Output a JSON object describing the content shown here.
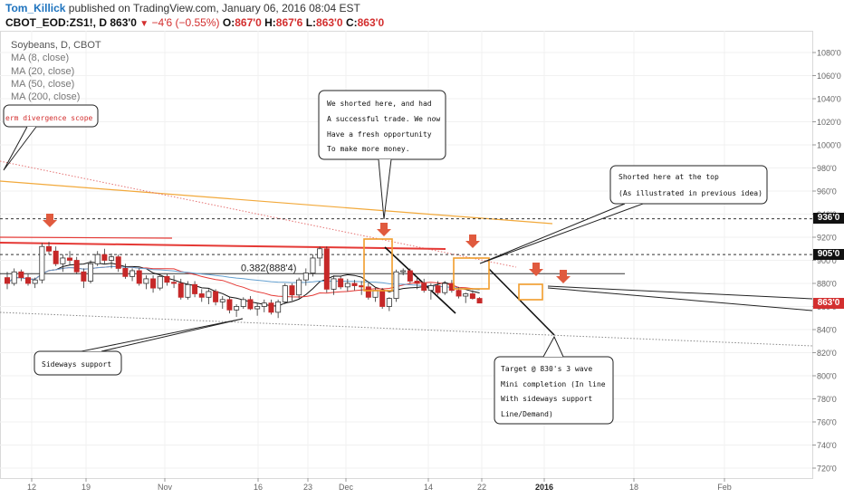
{
  "header": {
    "author": "Tom_Killick",
    "published": " published on TradingView.com, January 06, 2016 08:04 EST",
    "symbol": "CBOT_EOD:ZS1!, D",
    "last": "863'0",
    "change": "−4'6 (−0.55%)",
    "o_label": "O:",
    "o": "867'0",
    "h_label": "H:",
    "h": "867'6",
    "l_label": "L:",
    "l": "863'0",
    "c_label": "C:",
    "c": "863'0",
    "down_icon": "triangle-down-icon"
  },
  "legend": {
    "title": "Soybeans, D, CBOT",
    "items": [
      "MA (8, close)",
      "MA (20, close)",
      "MA (50, close)",
      "MA (200, close)"
    ]
  },
  "annotations": {
    "divergence": "erm divergence scope",
    "shorted1": [
      "We shorted here, and had",
      "A successful trade. We now",
      "Have a fresh opportunity",
      "To make more money."
    ],
    "shorted2": [
      "Shorted here at the top",
      "(As illustrated in previous idea)"
    ],
    "sideways": "Sideways support",
    "target": [
      "Target @ 830's 3 wave",
      "Mini completion (In line",
      "With sideways support",
      "Line/Demand)"
    ],
    "fib": "0.382(888'4)"
  },
  "price_tags": {
    "level_936": "936'0",
    "level_905": "905'0",
    "last": "863'0"
  },
  "colors": {
    "up": "#ffffff",
    "down": "#c62828",
    "ma8": "#111111",
    "ma20": "#e53935",
    "ma50": "#64a0d0",
    "ma200": "#f2a93b",
    "accent_box": "#f29d2b",
    "arrow": "#e05a3e"
  },
  "chart_data": {
    "type": "candlestick",
    "y_axis": {
      "min": 710,
      "max": 1090,
      "ticks": [
        "1080'0",
        "1060'0",
        "1040'0",
        "1020'0",
        "1000'0",
        "980'0",
        "960'0",
        "940'0",
        "920'0",
        "900'0",
        "880'0",
        "860'0",
        "840'0",
        "820'0",
        "800'0",
        "780'0",
        "760'0",
        "740'0",
        "720'0"
      ]
    },
    "x_axis": {
      "ticks": [
        "12",
        "19",
        "Nov",
        "16",
        "23",
        "Dec",
        "14",
        "22",
        "2016",
        "18",
        "Feb"
      ]
    },
    "candles": [
      [
        885,
        890,
        875,
        880
      ],
      [
        880,
        893,
        878,
        890
      ],
      [
        890,
        892,
        882,
        885
      ],
      [
        885,
        888,
        878,
        880
      ],
      [
        880,
        885,
        876,
        883
      ],
      [
        883,
        915,
        880,
        912
      ],
      [
        912,
        916,
        905,
        908
      ],
      [
        908,
        912,
        895,
        897
      ],
      [
        897,
        905,
        890,
        902
      ],
      [
        902,
        908,
        896,
        900
      ],
      [
        900,
        903,
        888,
        890
      ],
      [
        890,
        893,
        876,
        882
      ],
      [
        882,
        900,
        880,
        897
      ],
      [
        897,
        908,
        895,
        905
      ],
      [
        905,
        910,
        897,
        900
      ],
      [
        900,
        906,
        893,
        903
      ],
      [
        903,
        905,
        890,
        893
      ],
      [
        893,
        897,
        884,
        886
      ],
      [
        886,
        893,
        882,
        891
      ],
      [
        891,
        893,
        878,
        880
      ],
      [
        880,
        887,
        875,
        884
      ],
      [
        884,
        887,
        872,
        876
      ],
      [
        876,
        888,
        874,
        886
      ],
      [
        886,
        888,
        878,
        881
      ],
      [
        881,
        887,
        876,
        880
      ],
      [
        880,
        884,
        866,
        868
      ],
      [
        868,
        882,
        866,
        879
      ],
      [
        879,
        882,
        868,
        871
      ],
      [
        871,
        875,
        864,
        868
      ],
      [
        868,
        875,
        862,
        873
      ],
      [
        873,
        875,
        861,
        864
      ],
      [
        864,
        869,
        858,
        866
      ],
      [
        866,
        868,
        854,
        857
      ],
      [
        857,
        862,
        851,
        860
      ],
      [
        860,
        868,
        858,
        866
      ],
      [
        866,
        869,
        857,
        858
      ],
      [
        858,
        863,
        852,
        860
      ],
      [
        860,
        866,
        855,
        863
      ],
      [
        863,
        866,
        853,
        855
      ],
      [
        855,
        866,
        850,
        864
      ],
      [
        864,
        880,
        862,
        878
      ],
      [
        878,
        880,
        865,
        870
      ],
      [
        870,
        885,
        867,
        883
      ],
      [
        883,
        893,
        878,
        889
      ],
      [
        889,
        905,
        886,
        902
      ],
      [
        902,
        912,
        895,
        910
      ],
      [
        910,
        912,
        872,
        875
      ],
      [
        875,
        887,
        870,
        884
      ],
      [
        884,
        886,
        875,
        877
      ],
      [
        877,
        884,
        873,
        880
      ],
      [
        880,
        883,
        874,
        878
      ],
      [
        878,
        882,
        870,
        877
      ],
      [
        877,
        882,
        866,
        868
      ],
      [
        868,
        876,
        864,
        874
      ],
      [
        874,
        876,
        858,
        860
      ],
      [
        860,
        868,
        856,
        867
      ],
      [
        867,
        892,
        864,
        890
      ],
      [
        890,
        893,
        887,
        891
      ],
      [
        891,
        893,
        880,
        882
      ],
      [
        882,
        886,
        875,
        880
      ],
      [
        880,
        884,
        872,
        874
      ],
      [
        874,
        880,
        866,
        878
      ],
      [
        878,
        882,
        870,
        872
      ],
      [
        872,
        882,
        870,
        880
      ],
      [
        880,
        883,
        872,
        874
      ],
      [
        874,
        877,
        867,
        869
      ],
      [
        869,
        872,
        863,
        871
      ],
      [
        871,
        874,
        866,
        867
      ],
      [
        867,
        868,
        863,
        863
      ]
    ],
    "levels": [
      936,
      905,
      888.4
    ],
    "fib_label": "0.382(888'4)",
    "last": 863
  }
}
